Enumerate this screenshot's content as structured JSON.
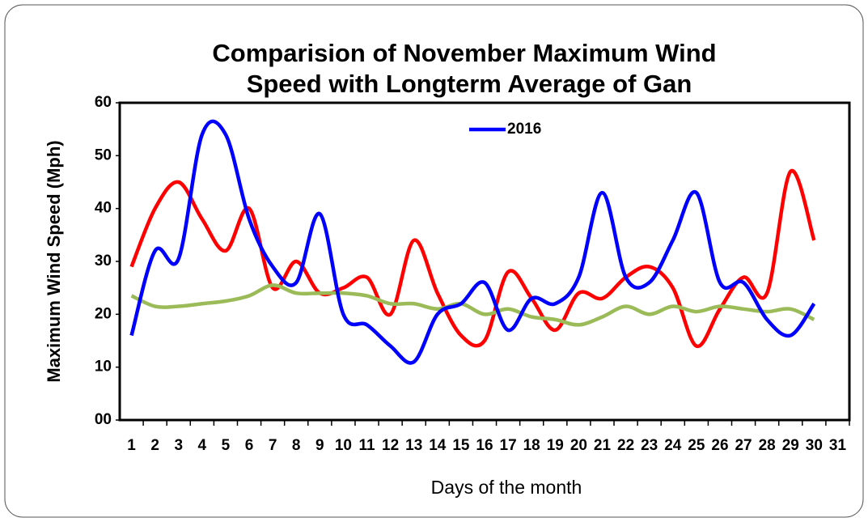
{
  "chart_data": {
    "type": "line",
    "title": [
      "Comparision of November Maximum Wind",
      "Speed with Longterm Average of Gan"
    ],
    "x_label": "Days of the month",
    "y_label": "Maximum Wind Speed (Mph)",
    "categories": [
      "1",
      "2",
      "3",
      "4",
      "5",
      "6",
      "7",
      "8",
      "9",
      "10",
      "11",
      "12",
      "13",
      "14",
      "15",
      "16",
      "17",
      "18",
      "19",
      "20",
      "21",
      "22",
      "23",
      "24",
      "25",
      "26",
      "27",
      "28",
      "29",
      "30",
      "31"
    ],
    "series": [
      {
        "name": "2016",
        "color": "#0000ff",
        "values": [
          16,
          32,
          30.5,
          54,
          54,
          38,
          29,
          26,
          39,
          20,
          18,
          14,
          11,
          20,
          22,
          26,
          17,
          23,
          22,
          27,
          43,
          27,
          26,
          34,
          43,
          26,
          26,
          19,
          16,
          22,
          null
        ]
      },
      {
        "color": "#ff0000",
        "values": [
          29,
          40,
          45,
          38,
          32,
          40,
          25,
          30,
          24,
          25,
          27,
          20,
          34,
          24,
          16,
          15,
          28,
          23,
          17,
          24,
          23,
          27,
          29,
          25,
          14,
          21,
          27,
          24,
          47,
          34,
          null
        ]
      },
      {
        "color": "#9bbb59",
        "values": [
          23.5,
          21.5,
          21.5,
          22,
          22.5,
          23.5,
          25.5,
          24,
          24,
          24,
          23.5,
          22,
          22,
          21,
          22,
          20,
          21,
          19.5,
          19,
          18,
          19.5,
          21.5,
          20,
          21.5,
          20.5,
          21.5,
          21,
          20.5,
          21,
          19,
          null
        ]
      }
    ],
    "ylim": [
      0,
      60
    ],
    "yticks": [
      {
        "value": 0,
        "label": "00"
      },
      10,
      20,
      30,
      40,
      50,
      60
    ],
    "legend": "top"
  }
}
